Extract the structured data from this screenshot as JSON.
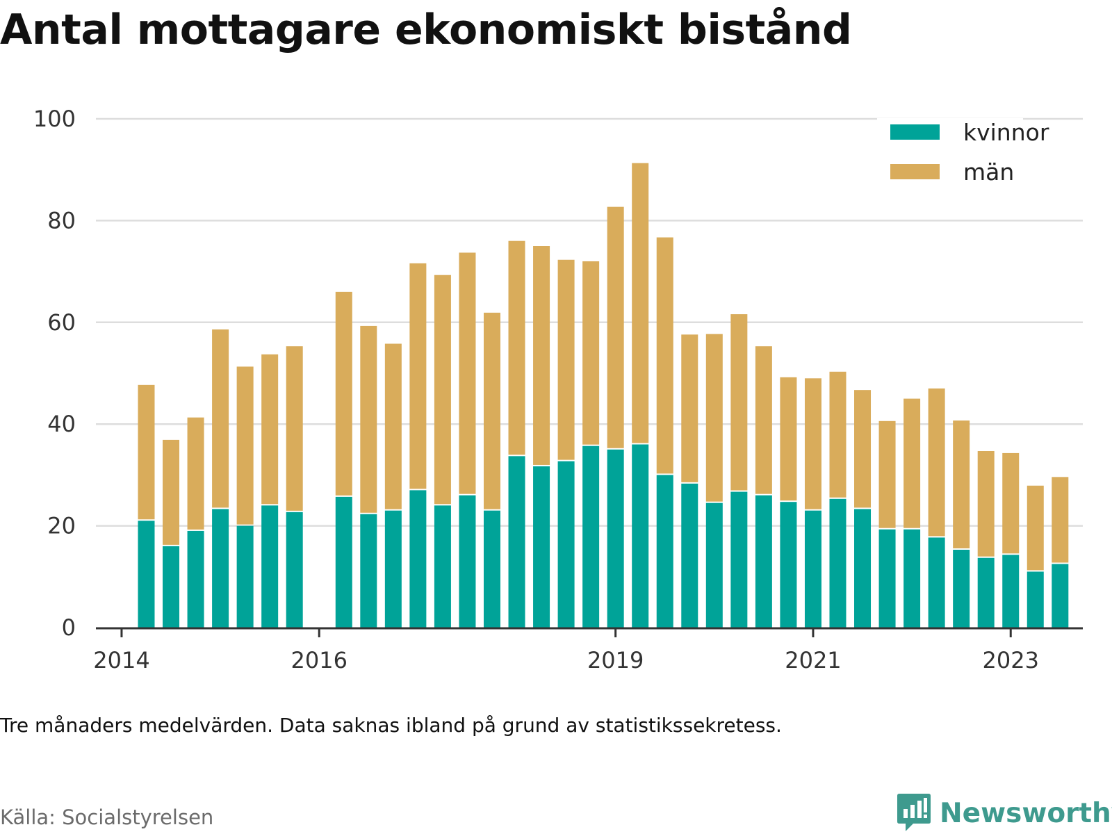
{
  "title": "Antal mottagare ekonomiskt bistånd",
  "note": "Tre månaders medelvärden. Data saknas ibland på grund av statistikssekretess.",
  "source": "Källa: Socialstyrelsen",
  "brand": {
    "name": "Newsworthy",
    "icon": "newsworthy-logo-icon",
    "color": "#3e9a8e"
  },
  "colors": {
    "kvinnor": "#00a398",
    "man": "#d9ac5b",
    "grid": "#dddddd",
    "axis": "#333333"
  },
  "chart_data": {
    "type": "bar",
    "stacked": true,
    "title": "Antal mottagare ekonomiskt bistånd",
    "xlabel": "",
    "ylabel": "",
    "ylim": [
      0,
      100
    ],
    "yticks": [
      0,
      20,
      40,
      60,
      80,
      100
    ],
    "xlim": [
      2013.74,
      2023.73
    ],
    "xticks": [
      {
        "value": 2014.0,
        "label": "2014"
      },
      {
        "value": 2016.0,
        "label": "2016"
      },
      {
        "value": 2019.0,
        "label": "2019"
      },
      {
        "value": 2021.0,
        "label": "2021"
      },
      {
        "value": 2023.0,
        "label": "2023"
      }
    ],
    "grid": true,
    "legend_position": "top-right",
    "x": [
      2014.25,
      2014.5,
      2014.75,
      2015.0,
      2015.25,
      2015.5,
      2015.75,
      2016.25,
      2016.5,
      2016.75,
      2017.0,
      2017.25,
      2017.5,
      2017.75,
      2018.0,
      2018.25,
      2018.5,
      2018.75,
      2019.0,
      2019.25,
      2019.5,
      2019.75,
      2020.0,
      2020.25,
      2020.5,
      2020.75,
      2021.0,
      2021.25,
      2021.5,
      2021.75,
      2022.0,
      2022.25,
      2022.5,
      2022.75,
      2023.0,
      2023.25,
      2023.5
    ],
    "series": [
      {
        "name": "kvinnor",
        "key": "kvinnor",
        "values": [
          21,
          16,
          19,
          23.3,
          20,
          24,
          22.7,
          25.7,
          22.3,
          23,
          27,
          24,
          26,
          23,
          33.7,
          31.7,
          32.7,
          35.7,
          35,
          36,
          30,
          28.3,
          24.5,
          26.7,
          26,
          24.7,
          23,
          25.3,
          23.3,
          19.3,
          19.3,
          17.7,
          15.3,
          13.7,
          14.3,
          11,
          12.5
        ]
      },
      {
        "name": "män",
        "key": "man",
        "values": [
          26.7,
          20.9,
          22.3,
          35.3,
          31.3,
          29.7,
          32.6,
          40.3,
          37,
          32.8,
          44.6,
          45.3,
          47.7,
          38.9,
          42.3,
          43.3,
          39.6,
          36.3,
          47.7,
          55.3,
          46.7,
          29.3,
          33.2,
          34.9,
          29.3,
          24.5,
          26,
          25,
          23.4,
          21.3,
          25.7,
          29.3,
          25.4,
          21,
          20,
          16.9,
          17.1
        ]
      }
    ]
  }
}
